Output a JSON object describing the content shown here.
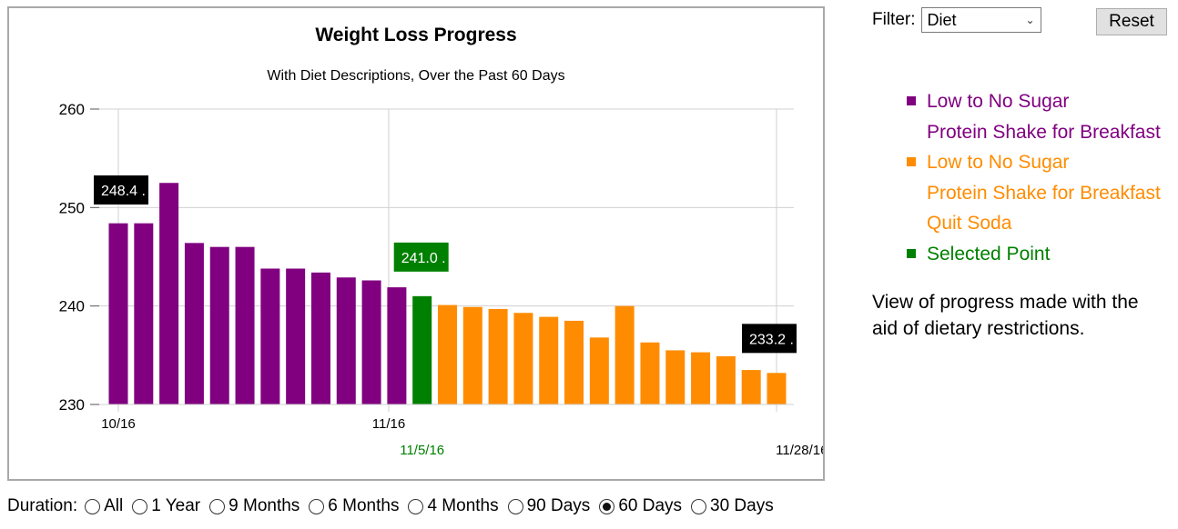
{
  "chart_data": {
    "type": "bar",
    "title": "Weight Loss Progress",
    "subtitle": "With Diet Descriptions, Over the Past 60 Days",
    "ylim": [
      230,
      260
    ],
    "y_ticks": [
      "230",
      "240",
      "250",
      "260"
    ],
    "x_ticks": [
      {
        "label": "10/16",
        "index": 0
      },
      {
        "label": "11/16",
        "index": 11
      },
      {
        "label": "11/5/16",
        "index": 12,
        "color": "#008000"
      },
      {
        "label": "11/28/16",
        "index": 27
      }
    ],
    "grid": true,
    "values": [
      248.4,
      248.4,
      252.5,
      246.4,
      246.0,
      246.0,
      243.8,
      243.8,
      243.4,
      242.9,
      242.6,
      241.9,
      241.0,
      240.1,
      239.9,
      239.7,
      239.3,
      238.9,
      238.5,
      236.8,
      240.0,
      236.3,
      235.5,
      235.3,
      234.9,
      233.5,
      233.2
    ],
    "colors": [
      "#800080",
      "#800080",
      "#800080",
      "#800080",
      "#800080",
      "#800080",
      "#800080",
      "#800080",
      "#800080",
      "#800080",
      "#800080",
      "#800080",
      "#008000",
      "#ff8c00",
      "#ff8c00",
      "#ff8c00",
      "#ff8c00",
      "#ff8c00",
      "#ff8c00",
      "#ff8c00",
      "#ff8c00",
      "#ff8c00",
      "#ff8c00",
      "#ff8c00",
      "#ff8c00",
      "#ff8c00",
      "#ff8c00"
    ],
    "data_labels": [
      {
        "index": 0,
        "text": "248.4",
        "bg": "#000000"
      },
      {
        "index": 12,
        "text": "241.0",
        "bg": "#008000"
      },
      {
        "index": 26,
        "text": "233.2",
        "bg": "#000000"
      }
    ]
  },
  "controls": {
    "duration_label": "Duration:",
    "durations": [
      "All",
      "1 Year",
      "9 Months",
      "6 Months",
      "4 Months",
      "90 Days",
      "60 Days",
      "30 Days"
    ],
    "selected_duration": "60 Days",
    "filter_label": "Filter:",
    "filter_value": "Diet",
    "reset_label": "Reset"
  },
  "legend": {
    "entries": [
      {
        "color": "#800080",
        "lines": [
          "Low to No Sugar",
          "Protein Shake for Breakfast"
        ]
      },
      {
        "color": "#ff8c00",
        "lines": [
          "Low to No Sugar",
          "Protein Shake for Breakfast",
          "Quit Soda"
        ]
      },
      {
        "color": "#008000",
        "lines": [
          "Selected Point"
        ]
      }
    ]
  },
  "description": "View of progress made with the aid of dietary restrictions."
}
